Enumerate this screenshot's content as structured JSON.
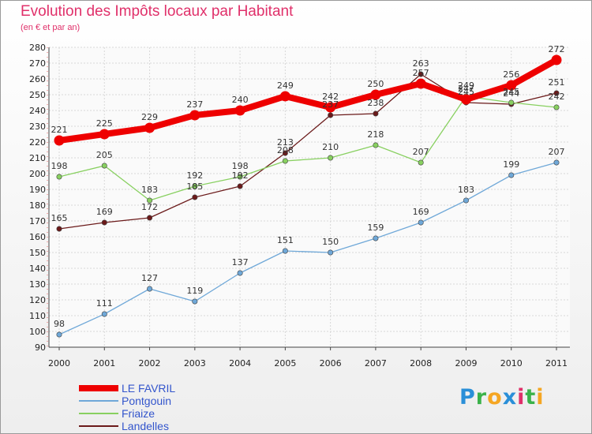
{
  "chart_data": {
    "type": "line",
    "title": "Evolution des Impôts locaux par Habitant",
    "subtitle": "(en € et par an)",
    "xlabel": "",
    "ylabel": "",
    "ylim": [
      90,
      280
    ],
    "yticks": [
      90,
      100,
      110,
      120,
      130,
      140,
      150,
      160,
      170,
      180,
      190,
      200,
      210,
      220,
      230,
      240,
      250,
      260,
      270,
      280
    ],
    "x": [
      "2000",
      "2001",
      "2002",
      "2003",
      "2004",
      "2005",
      "2006",
      "2007",
      "2008",
      "2009",
      "2010",
      "2011"
    ],
    "legend_position": "bottom-left",
    "series": [
      {
        "name": "Landelles",
        "color": "#6b1a1a",
        "labels": false,
        "values": [
          165,
          169,
          172,
          185,
          192,
          213,
          237,
          238,
          263,
          245,
          244,
          251
        ]
      },
      {
        "name": "Friaize",
        "color": "#88d060",
        "labels": false,
        "values": [
          198,
          205,
          183,
          192,
          198,
          208,
          210,
          218,
          207,
          249,
          245,
          242
        ]
      },
      {
        "name": "Pontgouin",
        "color": "#6fa8d8",
        "labels": true,
        "values": [
          98,
          111,
          127,
          119,
          137,
          151,
          150,
          159,
          169,
          183,
          199,
          207
        ]
      },
      {
        "name": "LE FAVRIL",
        "color": "#ee0000",
        "labels": true,
        "values": [
          221,
          225,
          229,
          237,
          240,
          249,
          242,
          250,
          257,
          247,
          256,
          272
        ]
      }
    ],
    "data_labels": [
      {
        "series": "Landelles",
        "values": [
          165,
          169,
          172,
          185,
          192,
          213,
          237,
          238,
          263,
          245,
          244,
          251
        ]
      },
      {
        "series": "Friaize",
        "values": [
          198,
          205,
          183,
          192,
          198,
          208,
          210,
          218,
          207,
          249,
          245,
          242
        ]
      }
    ]
  },
  "legend": {
    "items": [
      {
        "label": "LE FAVRIL",
        "color": "#ee0000"
      },
      {
        "label": "Pontgouin",
        "color": "#6fa8d8"
      },
      {
        "label": "Friaize",
        "color": "#88d060"
      },
      {
        "label": "Landelles",
        "color": "#6b1a1a"
      }
    ]
  },
  "logo": {
    "text": "Proxiti",
    "letters": [
      {
        "ch": "P",
        "color": "#2a8fd8"
      },
      {
        "ch": "r",
        "color": "#3bb24a"
      },
      {
        "ch": "o",
        "color": "#f5a623"
      },
      {
        "ch": "x",
        "color": "#2a8fd8"
      },
      {
        "ch": "i",
        "color": "#e0306a"
      },
      {
        "ch": "t",
        "color": "#3bb24a"
      },
      {
        "ch": "i",
        "color": "#f5a623"
      }
    ]
  }
}
